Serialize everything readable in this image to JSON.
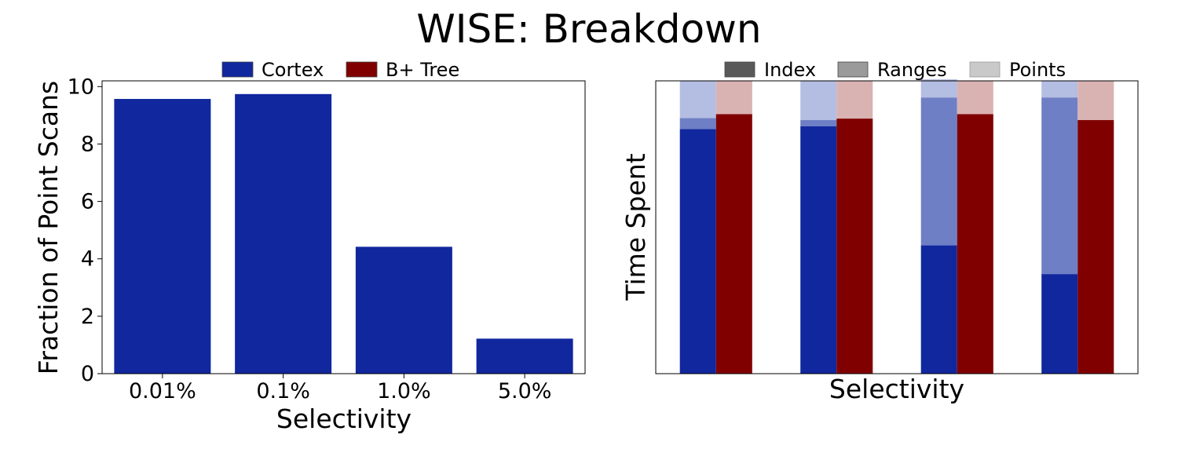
{
  "figure_title": "WISE: Breakdown",
  "chart_data": [
    {
      "type": "bar",
      "categories": [
        "0.01%",
        "0.1%",
        "1.0%",
        "5.0%"
      ],
      "series": [
        {
          "name": "Cortex",
          "values": [
            9.57,
            9.74,
            4.42,
            1.22
          ]
        }
      ],
      "legend_entries": [
        {
          "name": "Cortex",
          "color": "#10279e"
        },
        {
          "name": "B+ Tree",
          "color": "#800000"
        }
      ],
      "xlabel": "Selectivity",
      "ylabel": "Fraction of Point Scans",
      "ylim": [
        0,
        10.2
      ],
      "yticks": [
        "0",
        "2",
        "4",
        "6",
        "8",
        "10"
      ],
      "grid": false,
      "legend_placement": "top-center"
    },
    {
      "type": "bar",
      "stacked": true,
      "categories": [
        "",
        "",
        "",
        ""
      ],
      "series": [
        {
          "name": "Cortex",
          "index": [
            8.1,
            8.2,
            4.25,
            3.3
          ],
          "ranges": [
            0.37,
            0.2,
            4.9,
            5.85
          ],
          "points": [
            1.23,
            1.3,
            0.6,
            0.55
          ]
        },
        {
          "name": "B+ Tree",
          "index": [
            8.6,
            8.45,
            8.6,
            8.4
          ],
          "ranges": [
            0.0,
            0.0,
            0.0,
            0.0
          ],
          "points": [
            1.1,
            1.25,
            1.1,
            1.3
          ]
        }
      ],
      "legend_entries": [
        {
          "name": "Index",
          "color": "#595959"
        },
        {
          "name": "Ranges",
          "color": "#9a9a9a"
        },
        {
          "name": "Points",
          "color": "#c9c9c9"
        }
      ],
      "xlabel": "Selectivity",
      "ylabel": "Time Spent",
      "ylim": [
        0,
        9.7
      ],
      "yticks_visible": false,
      "xticks_visible": false,
      "grid": false,
      "legend_placement": "top-center"
    }
  ],
  "colors": {
    "cortex_index": "#10279e",
    "cortex_ranges": "#6f7fc5",
    "cortex_points": "#b4bde2",
    "btree_index": "#800000",
    "btree_ranges": "#b36666",
    "btree_points": "#d9b2b2"
  }
}
